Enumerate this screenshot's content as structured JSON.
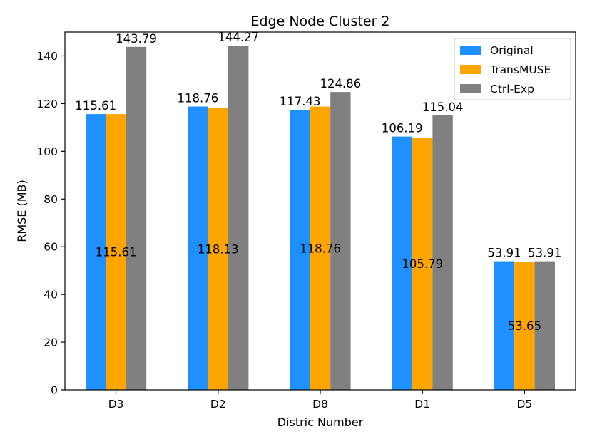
{
  "chart_data": {
    "type": "bar",
    "title": "Edge Node Cluster 2",
    "xlabel": "Distric Number",
    "ylabel": "RMSE (MB)",
    "ylim": [
      0,
      150
    ],
    "yticks": [
      0,
      20,
      40,
      60,
      80,
      100,
      120,
      140
    ],
    "categories": [
      "D3",
      "D2",
      "D8",
      "D1",
      "D5"
    ],
    "legend_position": "top-right",
    "series": [
      {
        "name": "Original",
        "color": "#1e90ff",
        "values": [
          115.61,
          118.76,
          117.43,
          106.19,
          53.91
        ],
        "label_position": "top"
      },
      {
        "name": "TransMUSE",
        "color": "#ffa500",
        "values": [
          115.61,
          118.13,
          118.76,
          105.79,
          53.65
        ],
        "label_position": "center"
      },
      {
        "name": "Ctrl-Exp",
        "color": "#808080",
        "values": [
          143.79,
          144.27,
          124.86,
          115.04,
          53.91
        ],
        "label_position": "top"
      }
    ]
  }
}
